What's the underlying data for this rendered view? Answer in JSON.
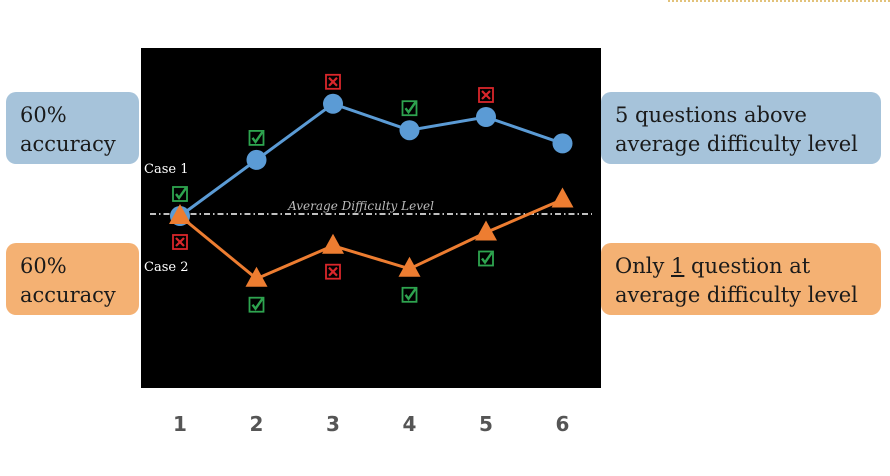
{
  "chart_data": {
    "type": "line",
    "x": [
      1,
      2,
      3,
      4,
      5,
      6
    ],
    "xticks": [
      "1",
      "2",
      "3",
      "4",
      "5",
      "6"
    ],
    "ylim": [
      -3,
      7
    ],
    "reference_line": {
      "label": "Average Difficulty Level",
      "value": 0,
      "style": "dash-dot",
      "color": "#ffffff"
    },
    "series": [
      {
        "name": "Case 1",
        "color": "#5b9bd5",
        "marker": "circle",
        "values": [
          0,
          1.7,
          3.4,
          2.6,
          3.0,
          2.2
        ],
        "results": [
          "correct",
          "correct",
          "incorrect",
          "correct",
          "incorrect",
          ""
        ]
      },
      {
        "name": "Case 2",
        "color": "#ed7d31",
        "marker": "triangle",
        "values": [
          0,
          -1.9,
          -0.9,
          -1.6,
          -0.5,
          0.5
        ],
        "results": [
          "incorrect",
          "correct",
          "incorrect",
          "correct",
          "correct",
          ""
        ]
      }
    ],
    "colors": {
      "correct": "#2ea44f",
      "incorrect": "#d9262b",
      "background": "#000000"
    }
  },
  "panels": {
    "top_left": {
      "line1": "60%",
      "line2": "accuracy",
      "color": "#a6c3da"
    },
    "bottom_left": {
      "line1": "60%",
      "line2": "accuracy",
      "color": "#f4b173"
    },
    "top_right": {
      "line1": "5 questions above",
      "line2": "average difficulty level",
      "color": "#a6c3da"
    },
    "bottom_right": {
      "line1_pre": "Only ",
      "line1_num": "1",
      "line1_post": " question at",
      "line2": "average difficulty level",
      "color": "#f4b173"
    }
  }
}
